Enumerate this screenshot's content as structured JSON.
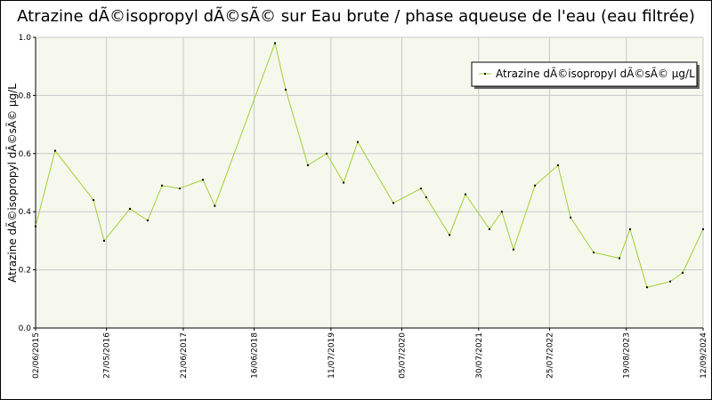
{
  "chart_data": {
    "type": "line",
    "title": "Atrazine dÃ©isopropyl dÃ©sÃ© sur Eau brute / phase aqueuse de l'eau (eau filtrée)",
    "y_label": "Atrazine dÃ©isopropyl dÃ©sÃ© µg/L",
    "x": [
      "2015-06-02",
      "2015-09-09",
      "2016-03-22",
      "2016-05-15",
      "2016-09-23",
      "2016-12-22",
      "2017-03-05",
      "2017-06-03",
      "2017-09-29",
      "2017-11-28",
      "2018-09-30",
      "2018-11-23",
      "2019-03-16",
      "2019-06-19",
      "2019-09-13",
      "2019-11-24",
      "2020-05-23",
      "2020-10-10",
      "2020-11-06",
      "2021-03-04",
      "2021-05-24",
      "2021-09-23",
      "2021-11-25",
      "2022-01-23",
      "2022-05-12",
      "2022-09-06",
      "2022-11-09",
      "2023-03-06",
      "2023-07-15",
      "2023-09-07",
      "2023-12-02",
      "2024-03-29",
      "2024-05-31",
      "2024-09-12"
    ],
    "series": [
      {
        "name": "Atrazine dÃ©isopropyl dÃ©sÃ© µg/L",
        "color": "#a0d030",
        "values": [
          0.35,
          0.61,
          0.44,
          0.3,
          0.41,
          0.37,
          0.49,
          0.48,
          0.51,
          0.42,
          0.98,
          0.82,
          0.56,
          0.6,
          0.5,
          0.64,
          0.43,
          0.48,
          0.45,
          0.32,
          0.46,
          0.34,
          0.4,
          0.27,
          0.49,
          0.56,
          0.38,
          0.26,
          0.24,
          0.34,
          0.14,
          0.16,
          0.19,
          0.34
        ]
      }
    ],
    "xlim": [
      "2015-06-02",
      "2024-09-12"
    ],
    "xticks": [
      {
        "value": "2015-06-02",
        "label": "02/06/2015"
      },
      {
        "value": "2016-05-27",
        "label": "27/05/2016"
      },
      {
        "value": "2017-06-21",
        "label": "21/06/2017"
      },
      {
        "value": "2018-06-16",
        "label": "16/06/2018"
      },
      {
        "value": "2019-07-11",
        "label": "11/07/2019"
      },
      {
        "value": "2020-07-05",
        "label": "05/07/2020"
      },
      {
        "value": "2021-07-30",
        "label": "30/07/2021"
      },
      {
        "value": "2022-07-25",
        "label": "25/07/2022"
      },
      {
        "value": "2023-08-19",
        "label": "19/08/2023"
      },
      {
        "value": "2024-09-12",
        "label": "12/09/2024"
      }
    ],
    "ylim": [
      0,
      1
    ],
    "yticks": [
      {
        "value": 0,
        "label": "0.0"
      },
      0.2,
      0.4,
      0.6,
      0.8,
      {
        "value": 1,
        "label": "1.0"
      }
    ],
    "grid": true,
    "legend": "top-right"
  }
}
